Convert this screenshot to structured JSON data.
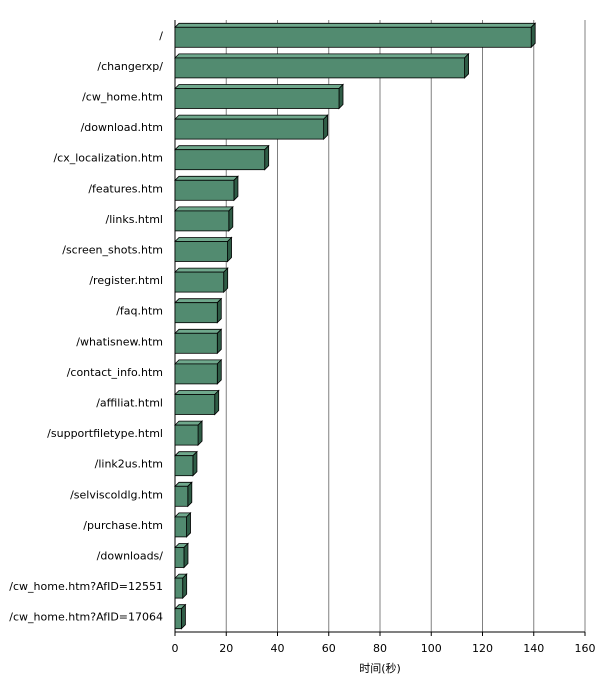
{
  "chart_data": {
    "type": "bar",
    "orientation": "horizontal",
    "title": "",
    "xlabel": "时间(秒)",
    "ylabel": "",
    "xlim": [
      0,
      160
    ],
    "x_ticks": [
      0,
      20,
      40,
      60,
      80,
      100,
      120,
      140,
      160
    ],
    "grid": true,
    "legend": "none",
    "categories": [
      "/",
      "/changerxp/",
      "/cw_home.htm",
      "/download.htm",
      "/cx_localization.htm",
      "/features.htm",
      "/links.html",
      "/screen_shots.htm",
      "/register.html",
      "/faq.htm",
      "/whatisnew.htm",
      "/contact_info.htm",
      "/affiliat.html",
      "/supportfiletype.html",
      "/link2us.htm",
      "/selviscoldlg.htm",
      "/purchase.htm",
      "/downloads/",
      "/cw_home.htm?AfID=12551",
      "/cw_home.htm?AfID=17064"
    ],
    "values": [
      139,
      113,
      64,
      58,
      35,
      23,
      21,
      20.5,
      19,
      16.5,
      16.5,
      16.5,
      15.5,
      9,
      7,
      5,
      4.5,
      3.5,
      3,
      2.5
    ],
    "colors": {
      "bar_front": "#528b70",
      "bar_top": "#6fa88c",
      "bar_side": "#2f5c46",
      "grid": "#808080"
    }
  }
}
